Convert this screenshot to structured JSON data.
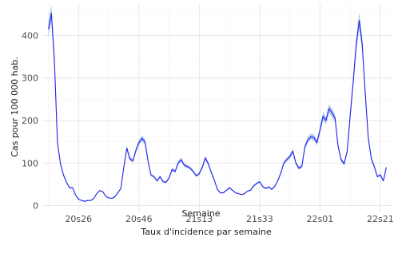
{
  "caption": "Taux d'incidence par semaine",
  "chart_data": {
    "type": "line",
    "xlabel": "Semaine",
    "ylabel": "Cas pour 100 000 hab.",
    "xticks": [
      {
        "label": "20s26",
        "week": 10
      },
      {
        "label": "20s46",
        "week": 30
      },
      {
        "label": "21s13",
        "week": 50
      },
      {
        "label": "21s33",
        "week": 70
      },
      {
        "label": "22s01",
        "week": 90
      },
      {
        "label": "22s21",
        "week": 110
      }
    ],
    "xlim": [
      -2,
      114
    ],
    "ylim": [
      -14,
      476
    ],
    "yticks": [
      0,
      100,
      200,
      300,
      400
    ],
    "grid": true,
    "line_color": "#1F22F0",
    "band_color": "#9BB8E8",
    "series": [
      {
        "values": [
          [
            0,
            415
          ],
          [
            1,
            452
          ],
          [
            2,
            340
          ],
          [
            3,
            148
          ],
          [
            4,
            98
          ],
          [
            5,
            72
          ],
          [
            6,
            55
          ],
          [
            7,
            42
          ],
          [
            8,
            42
          ],
          [
            9,
            25
          ],
          [
            10,
            15
          ],
          [
            11,
            12
          ],
          [
            12,
            10
          ],
          [
            13,
            12
          ],
          [
            14,
            12
          ],
          [
            15,
            16
          ],
          [
            16,
            28
          ],
          [
            17,
            35
          ],
          [
            18,
            33
          ],
          [
            19,
            22
          ],
          [
            20,
            18
          ],
          [
            21,
            17
          ],
          [
            22,
            20
          ],
          [
            23,
            30
          ],
          [
            24,
            40
          ],
          [
            25,
            90
          ],
          [
            26,
            135
          ],
          [
            27,
            110
          ],
          [
            28,
            105
          ],
          [
            29,
            130
          ],
          [
            30,
            148
          ],
          [
            31,
            158
          ],
          [
            32,
            150
          ],
          [
            33,
            105
          ],
          [
            34,
            72
          ],
          [
            35,
            68
          ],
          [
            36,
            58
          ],
          [
            37,
            68
          ],
          [
            38,
            56
          ],
          [
            39,
            55
          ],
          [
            40,
            65
          ],
          [
            41,
            85
          ],
          [
            42,
            80
          ],
          [
            43,
            100
          ],
          [
            44,
            108
          ],
          [
            45,
            95
          ],
          [
            46,
            92
          ],
          [
            47,
            88
          ],
          [
            48,
            80
          ],
          [
            49,
            70
          ],
          [
            50,
            75
          ],
          [
            51,
            90
          ],
          [
            52,
            112
          ],
          [
            53,
            98
          ],
          [
            54,
            78
          ],
          [
            55,
            60
          ],
          [
            56,
            38
          ],
          [
            57,
            30
          ],
          [
            58,
            30
          ],
          [
            59,
            36
          ],
          [
            60,
            42
          ],
          [
            61,
            36
          ],
          [
            62,
            30
          ],
          [
            63,
            28
          ],
          [
            64,
            26
          ],
          [
            65,
            28
          ],
          [
            66,
            34
          ],
          [
            67,
            36
          ],
          [
            68,
            46
          ],
          [
            69,
            52
          ],
          [
            70,
            56
          ],
          [
            71,
            45
          ],
          [
            72,
            40
          ],
          [
            73,
            44
          ],
          [
            74,
            38
          ],
          [
            75,
            45
          ],
          [
            76,
            58
          ],
          [
            77,
            76
          ],
          [
            78,
            100
          ],
          [
            79,
            108
          ],
          [
            80,
            115
          ],
          [
            81,
            128
          ],
          [
            82,
            100
          ],
          [
            83,
            88
          ],
          [
            84,
            92
          ],
          [
            85,
            138
          ],
          [
            86,
            155
          ],
          [
            87,
            162
          ],
          [
            88,
            160
          ],
          [
            89,
            148
          ],
          [
            90,
            178
          ],
          [
            91,
            210
          ],
          [
            92,
            200
          ],
          [
            93,
            228
          ],
          [
            94,
            218
          ],
          [
            95,
            205
          ],
          [
            96,
            140
          ],
          [
            97,
            108
          ],
          [
            98,
            98
          ],
          [
            99,
            128
          ],
          [
            100,
            210
          ],
          [
            101,
            290
          ],
          [
            102,
            378
          ],
          [
            103,
            435
          ],
          [
            104,
            380
          ],
          [
            105,
            265
          ],
          [
            106,
            160
          ],
          [
            107,
            110
          ],
          [
            108,
            92
          ],
          [
            109,
            68
          ],
          [
            110,
            72
          ],
          [
            111,
            58
          ],
          [
            112,
            90
          ]
        ]
      }
    ]
  }
}
